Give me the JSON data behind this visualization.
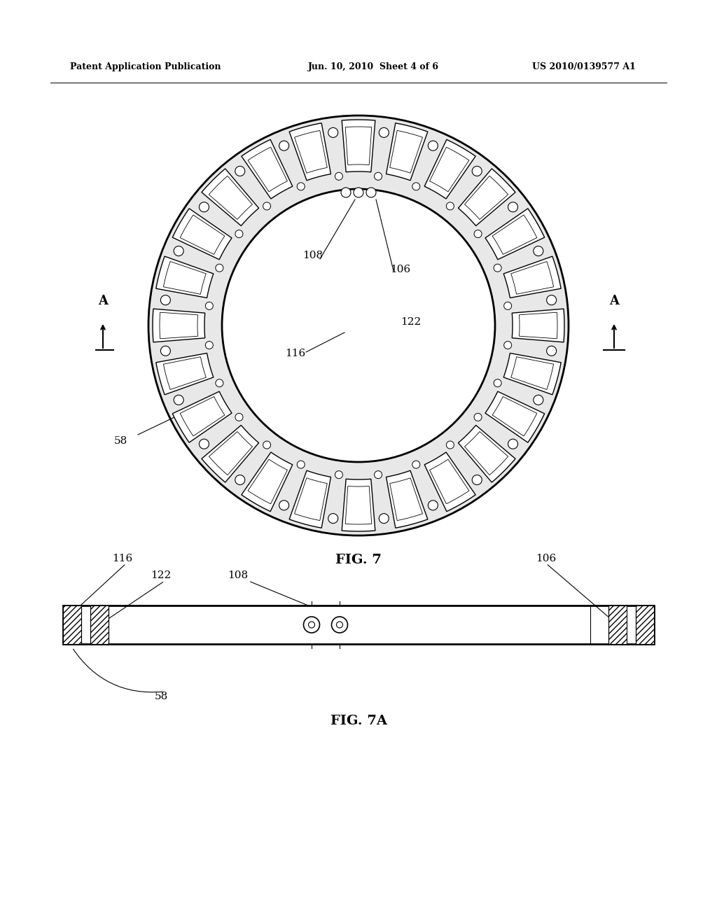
{
  "bg_color": "#ffffff",
  "header_left": "Patent Application Publication",
  "header_mid": "Jun. 10, 2010  Sheet 4 of 6",
  "header_right": "US 2010/0139577 A1",
  "fig7_label": "FIG. 7",
  "fig7a_label": "FIG. 7A",
  "line_color": "#000000",
  "gray_fill": "#e8e8e8",
  "num_slots": 24
}
